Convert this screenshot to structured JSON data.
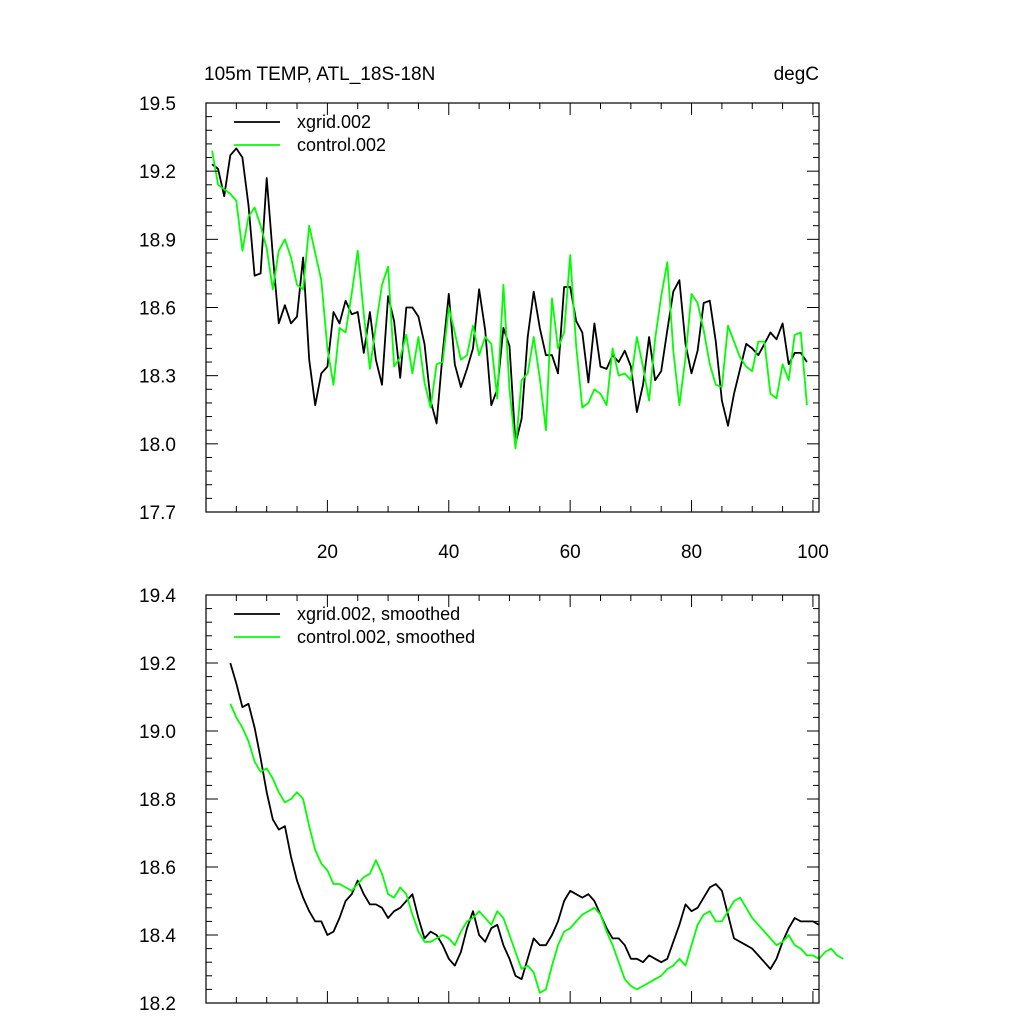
{
  "chart_data": [
    {
      "type": "line",
      "title_left": "105m TEMP, ATL_18S-18N",
      "title_right": "degC",
      "xlabel": "",
      "ylabel": "",
      "xlim": [
        0,
        101
      ],
      "ylim": [
        17.7,
        19.5
      ],
      "yticks": [
        17.7,
        18.0,
        18.3,
        18.6,
        18.9,
        19.2,
        19.5
      ],
      "ytick_labels": [
        "17.7",
        "18.0",
        "18.3",
        "18.6",
        "18.9",
        "19.2",
        "19.5"
      ],
      "xticks": [
        20,
        40,
        60,
        80,
        100
      ],
      "xtick_labels": [
        "20",
        "40",
        "60",
        "80",
        "100"
      ],
      "legend_position": "top-left",
      "series": [
        {
          "name": "xgrid.002",
          "color": "#000000",
          "x_start": 1,
          "values": [
            19.23,
            19.21,
            19.09,
            19.27,
            19.3,
            19.26,
            19.05,
            18.74,
            18.75,
            19.17,
            18.83,
            18.53,
            18.61,
            18.53,
            18.56,
            18.82,
            18.37,
            18.17,
            18.31,
            18.34,
            18.58,
            18.53,
            18.63,
            18.57,
            18.58,
            18.4,
            18.58,
            18.37,
            18.26,
            18.65,
            18.54,
            18.29,
            18.6,
            18.6,
            18.56,
            18.44,
            18.19,
            18.09,
            18.4,
            18.66,
            18.35,
            18.25,
            18.33,
            18.42,
            18.68,
            18.5,
            18.17,
            18.24,
            18.51,
            18.43,
            18.0,
            18.11,
            18.47,
            18.67,
            18.51,
            18.39,
            18.39,
            18.31,
            18.69,
            18.69,
            18.54,
            18.49,
            18.27,
            18.53,
            18.34,
            18.33,
            18.39,
            18.36,
            18.41,
            18.34,
            18.14,
            18.26,
            18.47,
            18.28,
            18.32,
            18.5,
            18.67,
            18.72,
            18.44,
            18.31,
            18.41,
            18.62,
            18.63,
            18.45,
            18.19,
            18.08,
            18.22,
            18.33,
            18.44,
            18.42,
            18.39,
            18.44,
            18.49,
            18.46,
            18.53,
            18.35,
            18.4,
            18.4,
            18.36
          ]
        },
        {
          "name": "control.002",
          "color": "#00ff00",
          "x_start": 1,
          "values": [
            19.29,
            19.14,
            19.12,
            19.1,
            19.07,
            18.85,
            19.0,
            19.04,
            18.96,
            18.86,
            18.68,
            18.85,
            18.9,
            18.82,
            18.7,
            18.68,
            18.96,
            18.84,
            18.72,
            18.42,
            18.26,
            18.51,
            18.49,
            18.66,
            18.85,
            18.57,
            18.33,
            18.52,
            18.7,
            18.78,
            18.34,
            18.38,
            18.48,
            18.31,
            18.47,
            18.27,
            18.16,
            18.35,
            18.36,
            18.6,
            18.49,
            18.37,
            18.39,
            18.52,
            18.39,
            18.47,
            18.44,
            18.2,
            18.7,
            18.24,
            17.98,
            18.28,
            18.31,
            18.47,
            18.29,
            18.06,
            18.64,
            18.42,
            18.49,
            18.83,
            18.43,
            18.16,
            18.18,
            18.24,
            18.22,
            18.17,
            18.42,
            18.3,
            18.31,
            18.28,
            18.47,
            18.34,
            18.19,
            18.46,
            18.65,
            18.8,
            18.41,
            18.17,
            18.38,
            18.66,
            18.62,
            18.5,
            18.35,
            18.26,
            18.25,
            18.52,
            18.45,
            18.38,
            18.34,
            18.32,
            18.45,
            18.45,
            18.22,
            18.2,
            18.35,
            18.28,
            18.48,
            18.49,
            18.17
          ]
        }
      ]
    },
    {
      "type": "line",
      "title_left": "",
      "title_right": "",
      "xlabel": "",
      "ylabel": "",
      "xlim": [
        0,
        101
      ],
      "ylim": [
        18.2,
        19.4
      ],
      "yticks": [
        18.2,
        18.4,
        18.6,
        18.8,
        19.0,
        19.2,
        19.4
      ],
      "ytick_labels": [
        "18.2",
        "18.4",
        "18.6",
        "18.8",
        "19.0",
        "19.2",
        "19.4"
      ],
      "xticks": [
        20,
        40,
        60,
        80,
        100
      ],
      "xtick_labels": [],
      "legend_position": "top-left",
      "series": [
        {
          "name": "xgrid.002, smoothed",
          "color": "#000000",
          "x_start": 4,
          "values": [
            19.2,
            19.14,
            19.07,
            19.08,
            19.01,
            18.92,
            18.82,
            18.74,
            18.71,
            18.72,
            18.63,
            18.56,
            18.51,
            18.47,
            18.44,
            18.44,
            18.4,
            18.41,
            18.45,
            18.5,
            18.52,
            18.56,
            18.52,
            18.49,
            18.49,
            18.48,
            18.45,
            18.47,
            18.48,
            18.5,
            18.52,
            18.45,
            18.39,
            18.41,
            18.4,
            18.37,
            18.33,
            18.31,
            18.35,
            18.42,
            18.47,
            18.4,
            18.38,
            18.42,
            18.43,
            18.37,
            18.33,
            18.28,
            18.27,
            18.33,
            18.39,
            18.37,
            18.37,
            18.4,
            18.44,
            18.5,
            18.53,
            18.52,
            18.51,
            18.52,
            18.5,
            18.46,
            18.42,
            18.39,
            18.39,
            18.37,
            18.33,
            18.33,
            18.32,
            18.34,
            18.33,
            18.32,
            18.33,
            18.38,
            18.43,
            18.49,
            18.47,
            18.48,
            18.51,
            18.54,
            18.55,
            18.53,
            18.46,
            18.39,
            18.38,
            18.37,
            18.36,
            18.34,
            18.32,
            18.3,
            18.33,
            18.38,
            18.42,
            18.45,
            18.44,
            18.44,
            18.44,
            18.43
          ]
        },
        {
          "name": "control.002, smoothed",
          "color": "#00ff00",
          "x_start": 4,
          "values": [
            19.08,
            19.04,
            19.01,
            18.97,
            18.91,
            18.88,
            18.89,
            18.86,
            18.82,
            18.79,
            18.8,
            18.82,
            18.8,
            18.72,
            18.65,
            18.61,
            18.59,
            18.55,
            18.55,
            18.54,
            18.53,
            18.55,
            18.57,
            18.58,
            18.62,
            18.58,
            18.52,
            18.51,
            18.54,
            18.52,
            18.46,
            18.41,
            18.38,
            18.38,
            18.39,
            18.4,
            18.39,
            18.37,
            18.41,
            18.44,
            18.45,
            18.47,
            18.45,
            18.43,
            18.47,
            18.45,
            18.4,
            18.35,
            18.3,
            18.31,
            18.29,
            18.23,
            18.24,
            18.31,
            18.37,
            18.41,
            18.42,
            18.44,
            18.46,
            18.47,
            18.48,
            18.46,
            18.41,
            18.37,
            18.32,
            18.27,
            18.25,
            18.24,
            18.25,
            18.26,
            18.27,
            18.28,
            18.3,
            18.31,
            18.33,
            18.31,
            18.37,
            18.43,
            18.46,
            18.47,
            18.44,
            18.44,
            18.47,
            18.5,
            18.51,
            18.48,
            18.45,
            18.43,
            18.41,
            18.39,
            18.37,
            18.38,
            18.4,
            18.37,
            18.36,
            18.34,
            18.34,
            18.33,
            18.35,
            18.36,
            18.34,
            18.33
          ]
        }
      ]
    }
  ]
}
